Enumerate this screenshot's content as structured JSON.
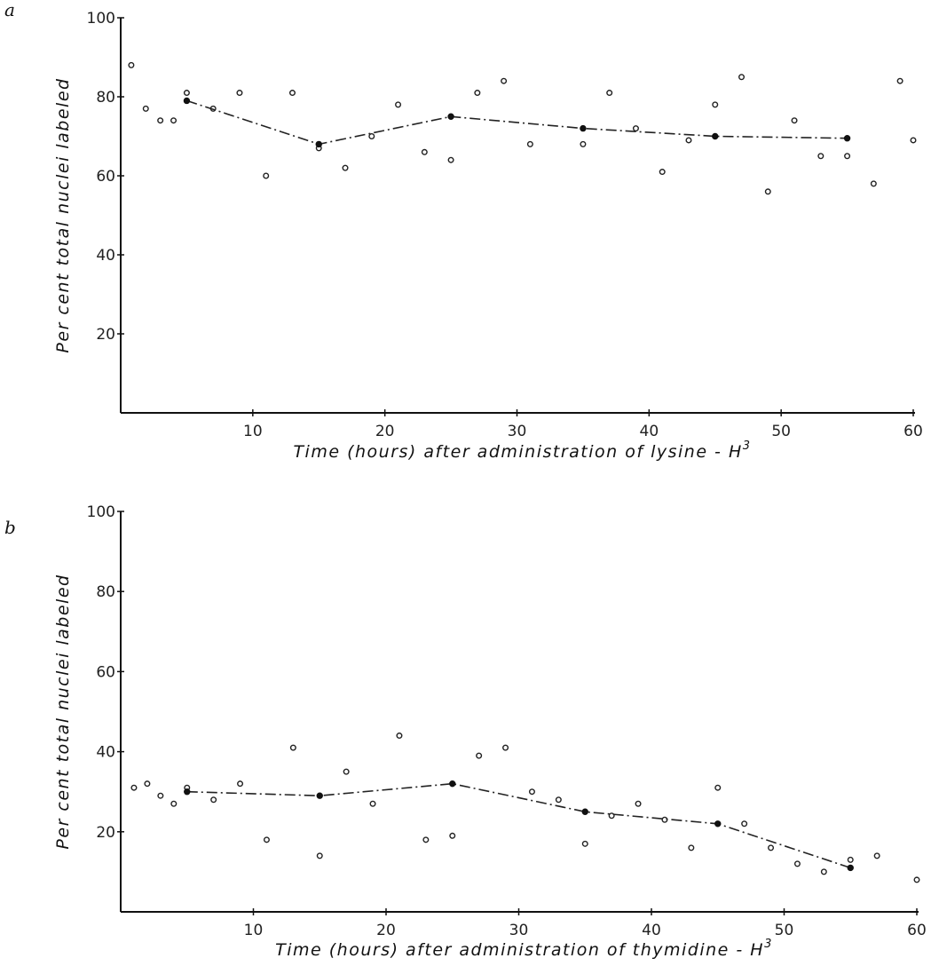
{
  "chart_data": [
    {
      "type": "scatter",
      "panel_label": "a",
      "xlabel": "Time (hours) after administration of lysine - H",
      "xlabel_sup": "3",
      "ylabel": "Per cent total nuclei labeled",
      "xlim": [
        0,
        60
      ],
      "ylim": [
        0,
        100
      ],
      "xticks": [
        10,
        20,
        30,
        40,
        50,
        60
      ],
      "yticks": [
        20,
        40,
        60,
        80,
        100
      ],
      "series": [
        {
          "kind": "individual",
          "points": [
            [
              0.8,
              88
            ],
            [
              1.9,
              77
            ],
            [
              3,
              74
            ],
            [
              4,
              74
            ],
            [
              5,
              81
            ],
            [
              7,
              77
            ],
            [
              9,
              81
            ],
            [
              11,
              60
            ],
            [
              13,
              81
            ],
            [
              15,
              67
            ],
            [
              17,
              62
            ],
            [
              19,
              70
            ],
            [
              21,
              78
            ],
            [
              23,
              66
            ],
            [
              25,
              64
            ],
            [
              27,
              81
            ],
            [
              29,
              84
            ],
            [
              31,
              68
            ],
            [
              35,
              68
            ],
            [
              37,
              81
            ],
            [
              39,
              72
            ],
            [
              41,
              61
            ],
            [
              43,
              69
            ],
            [
              45,
              78
            ],
            [
              47,
              85
            ],
            [
              49,
              56
            ],
            [
              51,
              74
            ],
            [
              53,
              65
            ],
            [
              55,
              65
            ],
            [
              57,
              58
            ],
            [
              59,
              84
            ],
            [
              60,
              69
            ]
          ]
        },
        {
          "kind": "mean",
          "points": [
            [
              5,
              79
            ],
            [
              15,
              68
            ],
            [
              25,
              75
            ],
            [
              35,
              72
            ],
            [
              45,
              70
            ],
            [
              55,
              69.5
            ]
          ]
        }
      ]
    },
    {
      "type": "scatter",
      "panel_label": "b",
      "xlabel": "Time (hours) after administration of thymidine - H",
      "xlabel_sup": "3",
      "ylabel": "Per cent total nuclei labeled",
      "xlim": [
        0,
        60
      ],
      "ylim": [
        0,
        100
      ],
      "xticks": [
        10,
        20,
        30,
        40,
        50,
        60
      ],
      "yticks": [
        20,
        40,
        60,
        80,
        100
      ],
      "series": [
        {
          "kind": "individual",
          "points": [
            [
              1,
              31
            ],
            [
              2,
              32
            ],
            [
              3,
              29
            ],
            [
              4,
              27
            ],
            [
              5,
              31
            ],
            [
              7,
              28
            ],
            [
              9,
              32
            ],
            [
              11,
              18
            ],
            [
              13,
              41
            ],
            [
              15,
              14
            ],
            [
              17,
              35
            ],
            [
              19,
              27
            ],
            [
              21,
              44
            ],
            [
              23,
              18
            ],
            [
              25,
              19
            ],
            [
              27,
              39
            ],
            [
              29,
              41
            ],
            [
              31,
              30
            ],
            [
              33,
              28
            ],
            [
              35,
              17
            ],
            [
              37,
              24
            ],
            [
              39,
              27
            ],
            [
              41,
              23
            ],
            [
              43,
              16
            ],
            [
              45,
              31
            ],
            [
              47,
              22
            ],
            [
              49,
              16
            ],
            [
              51,
              12
            ],
            [
              53,
              10
            ],
            [
              55,
              13
            ],
            [
              57,
              14
            ],
            [
              60,
              8
            ]
          ]
        },
        {
          "kind": "mean",
          "points": [
            [
              5,
              30
            ],
            [
              15,
              29
            ],
            [
              25,
              32
            ],
            [
              35,
              25
            ],
            [
              45,
              22
            ],
            [
              55,
              11
            ]
          ]
        }
      ]
    }
  ]
}
